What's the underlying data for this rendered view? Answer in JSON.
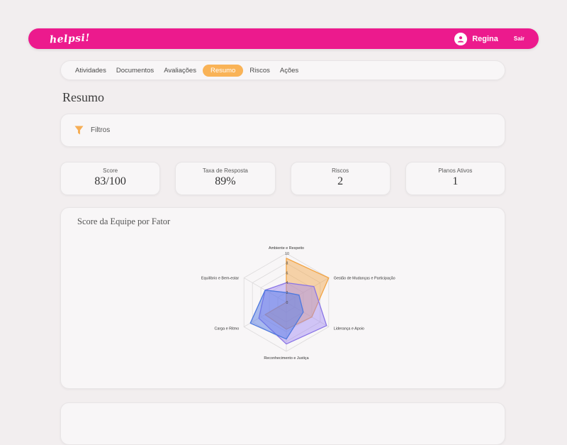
{
  "header": {
    "logo": "helpsi!",
    "user_name": "Regina",
    "logout_label": "Sair"
  },
  "nav": {
    "items": [
      {
        "label": "Atividades",
        "active": false
      },
      {
        "label": "Documentos",
        "active": false
      },
      {
        "label": "Avaliações",
        "active": false
      },
      {
        "label": "Resumo",
        "active": true
      },
      {
        "label": "Riscos",
        "active": false
      },
      {
        "label": "Ações",
        "active": false
      }
    ]
  },
  "page": {
    "title": "Resumo"
  },
  "filters": {
    "label": "Filtros",
    "icon": "funnel-icon"
  },
  "stats": [
    {
      "label": "Score",
      "value": "83/100"
    },
    {
      "label": "Taxa de Resposta",
      "value": "89%"
    },
    {
      "label": "Riscos",
      "value": "2"
    },
    {
      "label": "Planos Ativos",
      "value": "1"
    }
  ],
  "chart_card": {
    "title": "Score da Equipe por Fator"
  },
  "chart_data": {
    "type": "radar",
    "title": "Score da Equipe por Fator",
    "categories": [
      "Ambiente e Respeito",
      "Gestão de Mudanças e Participação",
      "Liderança e Apoio",
      "Reconhecimento e Justiça",
      "Carga e Ritmo",
      "Equilíbrio e Bem-estar"
    ],
    "ticks": [
      0,
      2,
      4,
      6,
      8,
      10
    ],
    "rlim": [
      0,
      10
    ],
    "grid": true,
    "legend": false,
    "series": [
      {
        "name": "serie-laranja",
        "stroke": "#F2A444",
        "fill": "rgba(242,164,68,0.45)",
        "values": [
          9,
          10,
          6,
          5.5,
          5,
          0
        ]
      },
      {
        "name": "serie-roxa",
        "stroke": "#8A75E6",
        "fill": "rgba(160,135,245,0.45)",
        "values": [
          4,
          6.5,
          9.5,
          8.5,
          6.5,
          5
        ]
      },
      {
        "name": "serie-azul",
        "stroke": "#4F79DE",
        "fill": "rgba(88,123,229,0.5)",
        "values": [
          2,
          3,
          4,
          7.5,
          8.5,
          5
        ]
      }
    ]
  },
  "colors": {
    "brand_pink": "#EC1A8D",
    "accent_orange": "#F9B357",
    "page_bg": "#F2EEEF",
    "card_bg": "#F8F6F7"
  }
}
